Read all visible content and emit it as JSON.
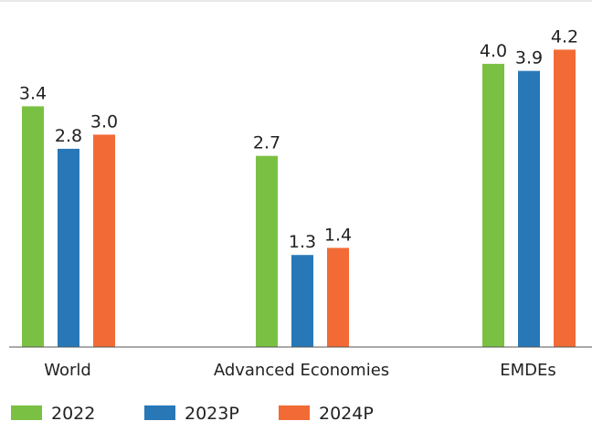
{
  "chart_data": {
    "type": "bar",
    "categories": [
      "World",
      "Advanced Economies",
      "EMDEs"
    ],
    "series": [
      {
        "name": "2022",
        "values": [
          3.4,
          2.7,
          4.0
        ],
        "color": "#7ac143"
      },
      {
        "name": "2023P",
        "values": [
          2.8,
          1.3,
          3.9
        ],
        "color": "#2878b8"
      },
      {
        "name": "2024P",
        "values": [
          3.0,
          1.4,
          4.2
        ],
        "color": "#f26b36"
      }
    ],
    "value_labels": [
      [
        "3.4",
        "2.7",
        "4.0"
      ],
      [
        "2.8",
        "1.3",
        "3.9"
      ],
      [
        "3.0",
        "1.4",
        "4.2"
      ]
    ],
    "ylim": [
      0,
      4.45
    ],
    "grid": false,
    "legend_position": "bottom-left"
  }
}
